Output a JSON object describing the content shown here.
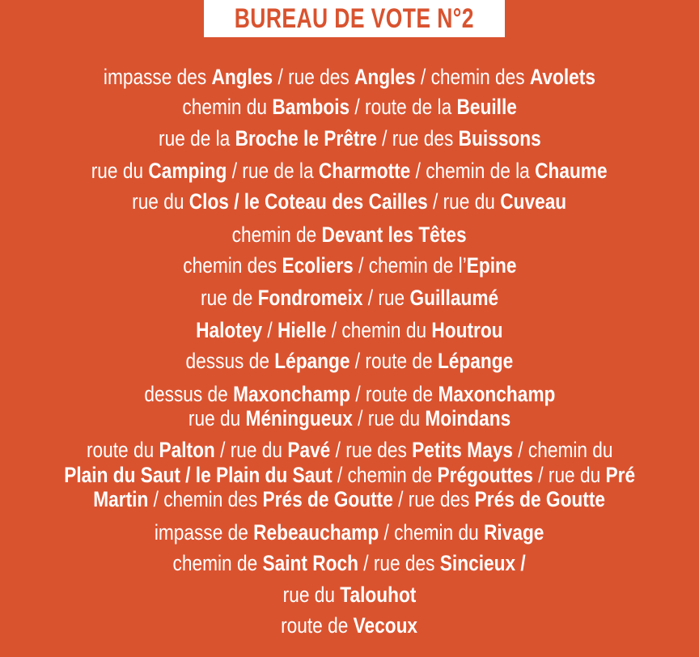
{
  "title": "BUREAU DE VOTE N°2",
  "colors": {
    "background": "#da532f",
    "title_box": "#ffffff",
    "title_text": "#d9532f",
    "text": "#ffffff"
  },
  "lines": [
    [
      {
        "t": "impasse des ",
        "b": false
      },
      {
        "t": "Angles",
        "b": true
      },
      {
        "t": " / ",
        "b": false
      },
      {
        "t": "rue des ",
        "b": false
      },
      {
        "t": "Angles",
        "b": true
      },
      {
        "t": " / ",
        "b": false
      },
      {
        "t": "chemin des ",
        "b": false
      },
      {
        "t": "Avolets",
        "b": true
      }
    ],
    [
      {
        "t": "chemin du ",
        "b": false
      },
      {
        "t": "Bambois",
        "b": true
      },
      {
        "t": " / ",
        "b": false
      },
      {
        "t": "route de la ",
        "b": false
      },
      {
        "t": "Beuille",
        "b": true
      }
    ],
    [
      {
        "t": "rue de la ",
        "b": false
      },
      {
        "t": "Broche le Prêtre",
        "b": true
      },
      {
        "t": " / ",
        "b": false
      },
      {
        "t": "rue des ",
        "b": false
      },
      {
        "t": "Buissons",
        "b": true
      }
    ],
    [
      {
        "t": "rue du ",
        "b": false
      },
      {
        "t": "Camping",
        "b": true
      },
      {
        "t": " / ",
        "b": false
      },
      {
        "t": "rue de la ",
        "b": false
      },
      {
        "t": "Charmotte",
        "b": true
      },
      {
        "t": " / ",
        "b": false
      },
      {
        "t": "chemin de la ",
        "b": false
      },
      {
        "t": "Chaume",
        "b": true
      }
    ],
    [
      {
        "t": "rue du ",
        "b": false
      },
      {
        "t": "Clos / le Coteau des Cailles",
        "b": true
      },
      {
        "t": " / ",
        "b": false
      },
      {
        "t": "rue du ",
        "b": false
      },
      {
        "t": "Cuveau",
        "b": true
      }
    ],
    [
      {
        "t": "chemin de ",
        "b": false
      },
      {
        "t": "Devant les Têtes",
        "b": true
      }
    ],
    [
      {
        "t": "chemin des ",
        "b": false
      },
      {
        "t": "Ecoliers",
        "b": true
      },
      {
        "t": " / ",
        "b": false
      },
      {
        "t": "chemin de l’",
        "b": false
      },
      {
        "t": "Epine",
        "b": true
      }
    ],
    [
      {
        "t": "rue de ",
        "b": false
      },
      {
        "t": "Fondromeix",
        "b": true
      },
      {
        "t": " / ",
        "b": false
      },
      {
        "t": "rue ",
        "b": false
      },
      {
        "t": "Guillaumé",
        "b": true
      }
    ],
    [
      {
        "t": "Halotey",
        "b": true
      },
      {
        "t": " / ",
        "b": false
      },
      {
        "t": "Hielle",
        "b": true
      },
      {
        "t": " / ",
        "b": false
      },
      {
        "t": "chemin du ",
        "b": false
      },
      {
        "t": "Houtrou",
        "b": true
      }
    ],
    [
      {
        "t": "dessus de ",
        "b": false
      },
      {
        "t": "Lépange",
        "b": true
      },
      {
        "t": " / ",
        "b": false
      },
      {
        "t": "route de ",
        "b": false
      },
      {
        "t": "Lépange",
        "b": true
      }
    ],
    [
      {
        "t": "dessus de ",
        "b": false
      },
      {
        "t": "Maxonchamp",
        "b": true
      },
      {
        "t": " / ",
        "b": false
      },
      {
        "t": "route de ",
        "b": false
      },
      {
        "t": "Maxonchamp",
        "b": true
      }
    ],
    [
      {
        "t": "rue du ",
        "b": false
      },
      {
        "t": "Méningueux",
        "b": true
      },
      {
        "t": " / ",
        "b": false
      },
      {
        "t": "rue du ",
        "b": false
      },
      {
        "t": "Moindans",
        "b": true
      }
    ],
    [
      {
        "t": "route du ",
        "b": false
      },
      {
        "t": "Palton",
        "b": true
      },
      {
        "t": " / ",
        "b": false
      },
      {
        "t": "rue du ",
        "b": false
      },
      {
        "t": "Pavé",
        "b": true
      },
      {
        "t": " / ",
        "b": false
      },
      {
        "t": "rue des ",
        "b": false
      },
      {
        "t": "Petits Mays",
        "b": true
      },
      {
        "t": " / ",
        "b": false
      },
      {
        "t": "chemin du",
        "b": false
      }
    ],
    [
      {
        "t": "Plain du Saut / le Plain du Saut",
        "b": true
      },
      {
        "t": " / ",
        "b": false
      },
      {
        "t": "chemin de ",
        "b": false
      },
      {
        "t": "Prégouttes",
        "b": true
      },
      {
        "t": " / ",
        "b": false
      },
      {
        "t": "rue du ",
        "b": false
      },
      {
        "t": "Pré",
        "b": true
      }
    ],
    [
      {
        "t": "Martin",
        "b": true
      },
      {
        "t": " / ",
        "b": false
      },
      {
        "t": "chemin des ",
        "b": false
      },
      {
        "t": "Prés de Goutte",
        "b": true
      },
      {
        "t": " / ",
        "b": false
      },
      {
        "t": "rue des ",
        "b": false
      },
      {
        "t": "Prés de Goutte",
        "b": true
      }
    ],
    [
      {
        "t": "impasse de ",
        "b": false
      },
      {
        "t": "Rebeauchamp",
        "b": true
      },
      {
        "t": " / ",
        "b": false
      },
      {
        "t": "chemin du ",
        "b": false
      },
      {
        "t": "Rivage",
        "b": true
      }
    ],
    [
      {
        "t": "chemin de ",
        "b": false
      },
      {
        "t": "Saint Roch",
        "b": true
      },
      {
        "t": " / ",
        "b": false
      },
      {
        "t": "rue des ",
        "b": false
      },
      {
        "t": "Sincieux",
        "b": true
      },
      {
        "t": " /",
        "b": true
      }
    ],
    [
      {
        "t": "rue du ",
        "b": false
      },
      {
        "t": "Talouhot",
        "b": true
      }
    ],
    [
      {
        "t": "route de ",
        "b": false
      },
      {
        "t": "Vecoux",
        "b": true
      }
    ]
  ]
}
